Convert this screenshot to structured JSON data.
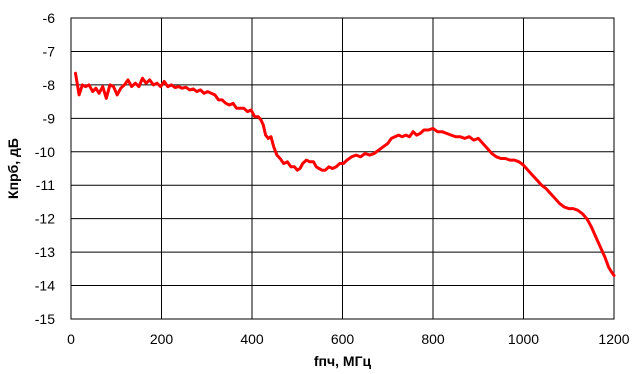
{
  "chart_data": {
    "type": "line",
    "xlabel": "fпч, МГц",
    "ylabel": "Кпрб, дБ",
    "xlim": [
      0,
      1200
    ],
    "ylim": [
      -15,
      -6
    ],
    "x_ticks": [
      0,
      200,
      400,
      600,
      800,
      1000,
      1200
    ],
    "y_ticks": [
      -6,
      -7,
      -8,
      -9,
      -10,
      -11,
      -12,
      -13,
      -14,
      -15
    ],
    "grid": true,
    "legend": "none",
    "series": [
      {
        "color": "#ff0000",
        "points": [
          [
            10,
            -7.65
          ],
          [
            18,
            -8.3
          ],
          [
            25,
            -8.0
          ],
          [
            32,
            -8.05
          ],
          [
            40,
            -8.0
          ],
          [
            48,
            -8.2
          ],
          [
            55,
            -8.1
          ],
          [
            62,
            -8.25
          ],
          [
            70,
            -8.05
          ],
          [
            78,
            -8.4
          ],
          [
            86,
            -8.0
          ],
          [
            94,
            -8.05
          ],
          [
            102,
            -8.3
          ],
          [
            110,
            -8.1
          ],
          [
            118,
            -8.0
          ],
          [
            126,
            -7.85
          ],
          [
            134,
            -8.05
          ],
          [
            142,
            -7.95
          ],
          [
            150,
            -8.05
          ],
          [
            158,
            -7.8
          ],
          [
            166,
            -7.95
          ],
          [
            174,
            -7.85
          ],
          [
            182,
            -8.0
          ],
          [
            190,
            -7.95
          ],
          [
            198,
            -8.05
          ],
          [
            206,
            -7.9
          ],
          [
            214,
            -8.05
          ],
          [
            222,
            -8.0
          ],
          [
            230,
            -8.08
          ],
          [
            238,
            -8.05
          ],
          [
            246,
            -8.1
          ],
          [
            254,
            -8.07
          ],
          [
            262,
            -8.15
          ],
          [
            270,
            -8.12
          ],
          [
            278,
            -8.2
          ],
          [
            286,
            -8.15
          ],
          [
            294,
            -8.25
          ],
          [
            302,
            -8.2
          ],
          [
            310,
            -8.25
          ],
          [
            318,
            -8.3
          ],
          [
            326,
            -8.45
          ],
          [
            334,
            -8.45
          ],
          [
            342,
            -8.55
          ],
          [
            350,
            -8.6
          ],
          [
            358,
            -8.55
          ],
          [
            366,
            -8.7
          ],
          [
            374,
            -8.7
          ],
          [
            382,
            -8.7
          ],
          [
            390,
            -8.8
          ],
          [
            398,
            -8.75
          ],
          [
            406,
            -8.95
          ],
          [
            414,
            -8.95
          ],
          [
            420,
            -9.05
          ],
          [
            425,
            -9.2
          ],
          [
            430,
            -9.5
          ],
          [
            436,
            -9.6
          ],
          [
            442,
            -9.55
          ],
          [
            448,
            -9.85
          ],
          [
            455,
            -10.1
          ],
          [
            462,
            -10.2
          ],
          [
            470,
            -10.35
          ],
          [
            478,
            -10.3
          ],
          [
            486,
            -10.45
          ],
          [
            494,
            -10.45
          ],
          [
            500,
            -10.55
          ],
          [
            506,
            -10.5
          ],
          [
            512,
            -10.35
          ],
          [
            520,
            -10.25
          ],
          [
            528,
            -10.3
          ],
          [
            536,
            -10.3
          ],
          [
            542,
            -10.45
          ],
          [
            548,
            -10.5
          ],
          [
            555,
            -10.55
          ],
          [
            562,
            -10.55
          ],
          [
            570,
            -10.45
          ],
          [
            578,
            -10.5
          ],
          [
            586,
            -10.45
          ],
          [
            594,
            -10.35
          ],
          [
            602,
            -10.35
          ],
          [
            610,
            -10.25
          ],
          [
            620,
            -10.15
          ],
          [
            630,
            -10.1
          ],
          [
            640,
            -10.15
          ],
          [
            650,
            -10.05
          ],
          [
            660,
            -10.1
          ],
          [
            670,
            -10.05
          ],
          [
            680,
            -9.95
          ],
          [
            690,
            -9.85
          ],
          [
            700,
            -9.75
          ],
          [
            708,
            -9.6
          ],
          [
            716,
            -9.55
          ],
          [
            724,
            -9.5
          ],
          [
            732,
            -9.55
          ],
          [
            740,
            -9.5
          ],
          [
            748,
            -9.55
          ],
          [
            756,
            -9.4
          ],
          [
            764,
            -9.5
          ],
          [
            772,
            -9.45
          ],
          [
            780,
            -9.35
          ],
          [
            790,
            -9.35
          ],
          [
            800,
            -9.3
          ],
          [
            810,
            -9.4
          ],
          [
            820,
            -9.4
          ],
          [
            830,
            -9.45
          ],
          [
            840,
            -9.5
          ],
          [
            850,
            -9.55
          ],
          [
            860,
            -9.55
          ],
          [
            870,
            -9.6
          ],
          [
            880,
            -9.55
          ],
          [
            890,
            -9.65
          ],
          [
            900,
            -9.6
          ],
          [
            910,
            -9.75
          ],
          [
            920,
            -9.9
          ],
          [
            930,
            -10.05
          ],
          [
            940,
            -10.15
          ],
          [
            950,
            -10.2
          ],
          [
            960,
            -10.2
          ],
          [
            970,
            -10.25
          ],
          [
            980,
            -10.25
          ],
          [
            990,
            -10.3
          ],
          [
            1000,
            -10.4
          ],
          [
            1010,
            -10.55
          ],
          [
            1020,
            -10.7
          ],
          [
            1030,
            -10.85
          ],
          [
            1040,
            -11.0
          ],
          [
            1050,
            -11.1
          ],
          [
            1060,
            -11.25
          ],
          [
            1070,
            -11.4
          ],
          [
            1080,
            -11.55
          ],
          [
            1090,
            -11.65
          ],
          [
            1100,
            -11.7
          ],
          [
            1110,
            -11.7
          ],
          [
            1120,
            -11.75
          ],
          [
            1130,
            -11.85
          ],
          [
            1140,
            -12.0
          ],
          [
            1150,
            -12.25
          ],
          [
            1160,
            -12.55
          ],
          [
            1170,
            -12.85
          ],
          [
            1180,
            -13.15
          ],
          [
            1188,
            -13.45
          ],
          [
            1195,
            -13.6
          ],
          [
            1200,
            -13.7
          ]
        ]
      }
    ]
  }
}
